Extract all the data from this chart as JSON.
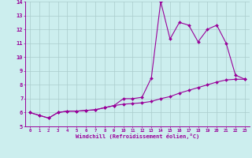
{
  "xlabel": "Windchill (Refroidissement éolien,°C)",
  "x": [
    0,
    1,
    2,
    3,
    4,
    5,
    6,
    7,
    8,
    9,
    10,
    11,
    12,
    13,
    14,
    15,
    16,
    17,
    18,
    19,
    20,
    21,
    22,
    23
  ],
  "line1": [
    6.0,
    5.8,
    5.6,
    6.0,
    6.1,
    6.1,
    6.15,
    6.2,
    6.35,
    6.5,
    7.0,
    7.0,
    7.1,
    8.5,
    14.0,
    11.3,
    12.5,
    12.3,
    11.1,
    12.0,
    12.3,
    11.0,
    8.7,
    8.4
  ],
  "line2": [
    6.0,
    5.8,
    5.6,
    6.0,
    6.1,
    6.1,
    6.15,
    6.2,
    6.35,
    6.5,
    6.6,
    6.65,
    6.7,
    6.8,
    7.0,
    7.15,
    7.4,
    7.6,
    7.8,
    8.0,
    8.2,
    8.35,
    8.4,
    8.4
  ],
  "line_color": "#990099",
  "bg_color": "#cceeee",
  "grid_color": "#aacccc",
  "ylim": [
    5,
    14
  ],
  "xlim": [
    -0.5,
    23.5
  ],
  "yticks": [
    5,
    6,
    7,
    8,
    9,
    10,
    11,
    12,
    13,
    14
  ],
  "xticks": [
    0,
    1,
    2,
    3,
    4,
    5,
    6,
    7,
    8,
    9,
    10,
    11,
    12,
    13,
    14,
    15,
    16,
    17,
    18,
    19,
    20,
    21,
    22,
    23
  ]
}
